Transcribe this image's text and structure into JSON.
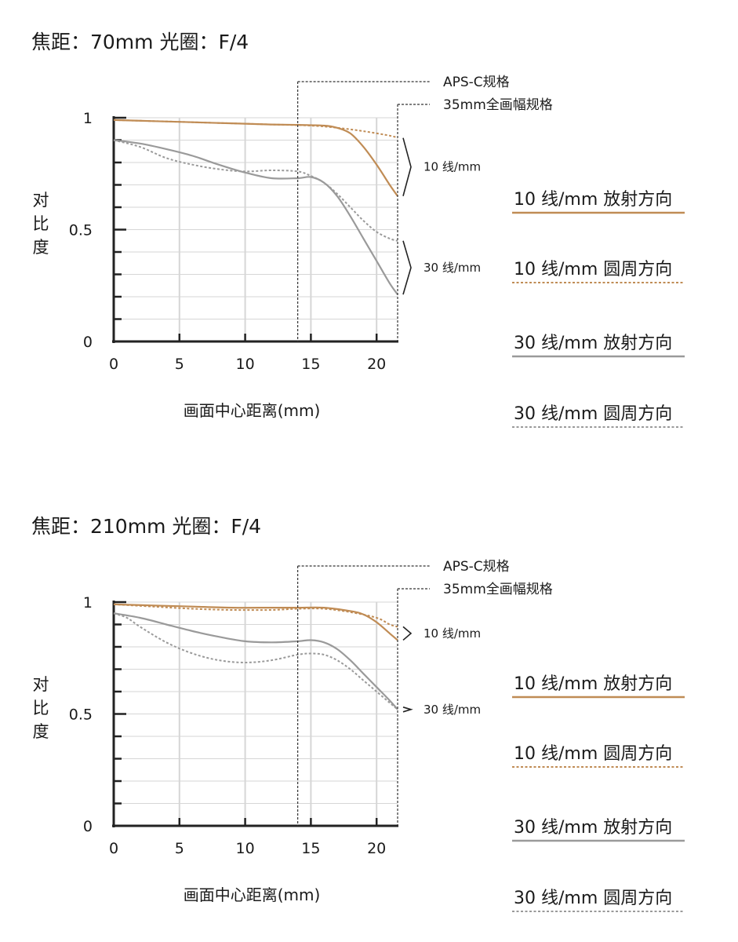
{
  "colors": {
    "ten_lines": "#c08c55",
    "thirty_lines": "#9a9a9a",
    "grid": "#d6d6d6",
    "axis": "#222222"
  },
  "legend": [
    {
      "label": "10 线/mm  放射方向",
      "color": "#c08c55",
      "style": "solid"
    },
    {
      "label": "10 线/mm  圆周方向",
      "color": "#c08c55",
      "style": "dotted"
    },
    {
      "label": "30 线/mm  放射方向",
      "color": "#9a9a9a",
      "style": "solid"
    },
    {
      "label": "30 线/mm  圆周方向",
      "color": "#9a9a9a",
      "style": "dotted"
    }
  ],
  "chart_data": [
    {
      "type": "line",
      "title": "焦距：70mm  光圈：F/4",
      "xlabel": "画面中心距离(mm)",
      "ylabel": "对比度",
      "xlim": [
        0,
        21.6
      ],
      "ylim": [
        0,
        1
      ],
      "x_ticks": [
        "0",
        "5",
        "10",
        "15",
        "20"
      ],
      "y_ticks": [
        "0",
        "0.5",
        "1"
      ],
      "grid": true,
      "markers": [
        {
          "label": "APS-C规格",
          "x": 14
        },
        {
          "label": "35mm全画幅规格",
          "x": 21.6
        }
      ],
      "group_labels": [
        "10 线/mm",
        "30 线/mm"
      ],
      "series": [
        {
          "x": [
            0,
            3,
            6,
            9,
            12,
            14,
            16,
            17,
            18,
            19,
            20,
            21,
            21.6
          ],
          "values": [
            0.99,
            0.985,
            0.98,
            0.975,
            0.97,
            0.968,
            0.965,
            0.955,
            0.93,
            0.87,
            0.79,
            0.7,
            0.65
          ],
          "color": "#c08c55",
          "style": "solid"
        },
        {
          "x": [
            0,
            3,
            6,
            9,
            12,
            15,
            17,
            19,
            21,
            21.6
          ],
          "values": [
            0.99,
            0.985,
            0.98,
            0.975,
            0.97,
            0.965,
            0.955,
            0.94,
            0.92,
            0.91
          ],
          "color": "#c08c55",
          "style": "dotted"
        },
        {
          "x": [
            0,
            2,
            4,
            6,
            8,
            10,
            12,
            14,
            15,
            16,
            17,
            18,
            19,
            20,
            21,
            21.6
          ],
          "values": [
            0.9,
            0.885,
            0.86,
            0.83,
            0.79,
            0.755,
            0.73,
            0.73,
            0.735,
            0.71,
            0.65,
            0.56,
            0.46,
            0.36,
            0.26,
            0.21
          ],
          "color": "#9a9a9a",
          "style": "solid"
        },
        {
          "x": [
            0,
            2,
            4,
            6,
            8,
            10,
            12,
            14,
            15,
            16,
            17,
            18,
            19,
            20,
            21,
            21.6
          ],
          "values": [
            0.9,
            0.87,
            0.82,
            0.79,
            0.77,
            0.76,
            0.765,
            0.76,
            0.74,
            0.71,
            0.66,
            0.6,
            0.54,
            0.49,
            0.46,
            0.45
          ],
          "color": "#9a9a9a",
          "style": "dotted"
        }
      ]
    },
    {
      "type": "line",
      "title": "焦距：210mm  光圈：F/4",
      "xlabel": "画面中心距离(mm)",
      "ylabel": "对比度",
      "xlim": [
        0,
        21.6
      ],
      "ylim": [
        0,
        1
      ],
      "x_ticks": [
        "0",
        "5",
        "10",
        "15",
        "20"
      ],
      "y_ticks": [
        "0",
        "0.5",
        "1"
      ],
      "grid": true,
      "markers": [
        {
          "label": "APS-C规格",
          "x": 14
        },
        {
          "label": "35mm全画幅规格",
          "x": 21.6
        }
      ],
      "group_labels": [
        "10 线/mm",
        "30 线/mm"
      ],
      "series": [
        {
          "x": [
            0,
            3,
            6,
            9,
            12,
            14,
            16,
            18,
            19,
            20,
            21,
            21.6
          ],
          "values": [
            0.99,
            0.985,
            0.98,
            0.975,
            0.975,
            0.975,
            0.975,
            0.96,
            0.945,
            0.91,
            0.86,
            0.83
          ],
          "color": "#c08c55",
          "style": "solid"
        },
        {
          "x": [
            0,
            3,
            6,
            9,
            12,
            14,
            16,
            18,
            20,
            21,
            21.6
          ],
          "values": [
            0.99,
            0.98,
            0.97,
            0.965,
            0.965,
            0.97,
            0.97,
            0.955,
            0.93,
            0.9,
            0.89
          ],
          "color": "#c08c55",
          "style": "dotted"
        },
        {
          "x": [
            0,
            2,
            4,
            6,
            8,
            10,
            12,
            14,
            15,
            16,
            17,
            18,
            19,
            20,
            21,
            21.6
          ],
          "values": [
            0.95,
            0.93,
            0.9,
            0.87,
            0.845,
            0.825,
            0.82,
            0.825,
            0.83,
            0.82,
            0.79,
            0.74,
            0.68,
            0.62,
            0.56,
            0.52
          ],
          "color": "#9a9a9a",
          "style": "solid"
        },
        {
          "x": [
            0,
            1,
            2,
            4,
            6,
            8,
            10,
            12,
            14,
            15,
            16,
            17,
            18,
            19,
            20,
            21,
            21.6
          ],
          "values": [
            0.95,
            0.93,
            0.89,
            0.82,
            0.77,
            0.74,
            0.73,
            0.74,
            0.765,
            0.77,
            0.765,
            0.74,
            0.7,
            0.65,
            0.6,
            0.55,
            0.52
          ],
          "color": "#9a9a9a",
          "style": "dotted"
        }
      ]
    }
  ]
}
